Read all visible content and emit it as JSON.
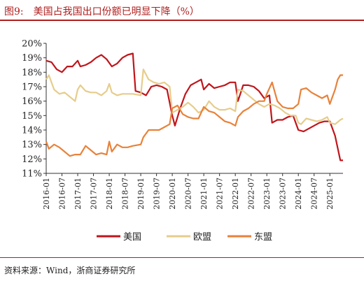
{
  "header": {
    "figure_label": "图9:",
    "title": "美国占我国出口份额已明显下降（%）"
  },
  "footer": {
    "source": "资料来源：Wind，浙商证券研究所"
  },
  "chart_data": {
    "type": "line",
    "title": "美国占我国出口份额已明显下降（%）",
    "xlabel": "",
    "ylabel": "",
    "ylim": [
      11,
      20
    ],
    "ytick_labels": [
      "11%",
      "12%",
      "13%",
      "14%",
      "15%",
      "16%",
      "17%",
      "18%",
      "19%",
      "20%"
    ],
    "xtick_labels": [
      "2016-01",
      "2016-07",
      "2017-01",
      "2017-07",
      "2018-01",
      "2018-07",
      "2019-01",
      "2019-07",
      "2020-01",
      "2020-07",
      "2021-01",
      "2021-07",
      "2022-01",
      "2022-07",
      "2023-01",
      "2023-07",
      "2024-01",
      "2024-07",
      "2025-01"
    ],
    "grid": false,
    "legend_position": "bottom",
    "series": [
      {
        "name": "美国",
        "color": "#c0151b",
        "points": [
          [
            "2016-01",
            18.8
          ],
          [
            "2016-03",
            18.7
          ],
          [
            "2016-05",
            18.2
          ],
          [
            "2016-07",
            18.0
          ],
          [
            "2016-09",
            18.4
          ],
          [
            "2016-11",
            18.4
          ],
          [
            "2017-01",
            18.8
          ],
          [
            "2017-02",
            18.4
          ],
          [
            "2017-04",
            18.5
          ],
          [
            "2017-06",
            18.7
          ],
          [
            "2017-08",
            19.0
          ],
          [
            "2017-10",
            19.2
          ],
          [
            "2017-12",
            18.9
          ],
          [
            "2018-02",
            18.4
          ],
          [
            "2018-04",
            18.6
          ],
          [
            "2018-06",
            19.0
          ],
          [
            "2018-08",
            19.2
          ],
          [
            "2018-10",
            19.3
          ],
          [
            "2018-11",
            16.7
          ],
          [
            "2019-01",
            16.6
          ],
          [
            "2019-03",
            16.4
          ],
          [
            "2019-05",
            17.0
          ],
          [
            "2019-07",
            17.1
          ],
          [
            "2019-09",
            17.0
          ],
          [
            "2019-11",
            16.8
          ],
          [
            "2020-01",
            15.0
          ],
          [
            "2020-02",
            14.3
          ],
          [
            "2020-04",
            15.5
          ],
          [
            "2020-06",
            16.5
          ],
          [
            "2020-08",
            17.1
          ],
          [
            "2020-10",
            17.3
          ],
          [
            "2020-12",
            17.5
          ],
          [
            "2021-01",
            16.8
          ],
          [
            "2021-03",
            17.2
          ],
          [
            "2021-05",
            16.9
          ],
          [
            "2021-07",
            17.0
          ],
          [
            "2021-09",
            17.1
          ],
          [
            "2021-11",
            17.3
          ],
          [
            "2022-01",
            17.3
          ],
          [
            "2022-02",
            16.0
          ],
          [
            "2022-04",
            17.1
          ],
          [
            "2022-06",
            17.1
          ],
          [
            "2022-08",
            17.0
          ],
          [
            "2022-10",
            16.7
          ],
          [
            "2022-12",
            16.2
          ],
          [
            "2023-02",
            16.4
          ],
          [
            "2023-03",
            14.5
          ],
          [
            "2023-05",
            14.7
          ],
          [
            "2023-07",
            14.7
          ],
          [
            "2023-09",
            14.9
          ],
          [
            "2023-11",
            15.0
          ],
          [
            "2024-01",
            14.0
          ],
          [
            "2024-03",
            13.9
          ],
          [
            "2024-05",
            14.1
          ],
          [
            "2024-07",
            14.3
          ],
          [
            "2024-09",
            14.5
          ],
          [
            "2024-11",
            14.6
          ],
          [
            "2025-01",
            14.6
          ],
          [
            "2025-03",
            13.6
          ],
          [
            "2025-05",
            11.9
          ],
          [
            "2025-06",
            11.9
          ]
        ]
      },
      {
        "name": "欧盟",
        "color": "#e6cd8c",
        "points": [
          [
            "2016-01",
            17.5
          ],
          [
            "2016-02",
            17.8
          ],
          [
            "2016-04",
            16.8
          ],
          [
            "2016-06",
            16.5
          ],
          [
            "2016-08",
            16.6
          ],
          [
            "2016-10",
            16.3
          ],
          [
            "2016-12",
            16.0
          ],
          [
            "2017-01",
            16.8
          ],
          [
            "2017-02",
            17.1
          ],
          [
            "2017-04",
            16.7
          ],
          [
            "2017-06",
            16.6
          ],
          [
            "2017-08",
            16.6
          ],
          [
            "2017-10",
            16.4
          ],
          [
            "2017-12",
            16.7
          ],
          [
            "2018-01",
            17.2
          ],
          [
            "2018-02",
            16.6
          ],
          [
            "2018-04",
            16.4
          ],
          [
            "2018-06",
            16.5
          ],
          [
            "2018-08",
            16.5
          ],
          [
            "2018-10",
            16.5
          ],
          [
            "2019-01",
            16.4
          ],
          [
            "2019-02",
            18.2
          ],
          [
            "2019-04",
            17.5
          ],
          [
            "2019-06",
            17.3
          ],
          [
            "2019-08",
            17.2
          ],
          [
            "2019-10",
            17.3
          ],
          [
            "2019-12",
            17.0
          ],
          [
            "2020-01",
            15.2
          ],
          [
            "2020-03",
            15.4
          ],
          [
            "2020-05",
            15.6
          ],
          [
            "2020-07",
            15.9
          ],
          [
            "2020-09",
            15.6
          ],
          [
            "2020-11",
            15.2
          ],
          [
            "2021-01",
            15.4
          ],
          [
            "2021-03",
            16.0
          ],
          [
            "2021-05",
            15.6
          ],
          [
            "2021-07",
            15.4
          ],
          [
            "2021-09",
            15.4
          ],
          [
            "2021-11",
            15.5
          ],
          [
            "2022-01",
            15.3
          ],
          [
            "2022-02",
            16.8
          ],
          [
            "2022-04",
            16.7
          ],
          [
            "2022-06",
            16.4
          ],
          [
            "2022-08",
            16.1
          ],
          [
            "2022-10",
            15.8
          ],
          [
            "2022-12",
            15.6
          ],
          [
            "2023-02",
            15.8
          ],
          [
            "2023-04",
            15.7
          ],
          [
            "2023-06",
            15.5
          ],
          [
            "2023-08",
            15.2
          ],
          [
            "2023-10",
            15.0
          ],
          [
            "2023-12",
            15.0
          ],
          [
            "2024-01",
            14.5
          ],
          [
            "2024-02",
            14.4
          ],
          [
            "2024-04",
            14.8
          ],
          [
            "2024-06",
            14.7
          ],
          [
            "2024-08",
            14.6
          ],
          [
            "2024-10",
            14.7
          ],
          [
            "2024-12",
            14.9
          ],
          [
            "2025-01",
            14.5
          ],
          [
            "2025-03",
            14.4
          ],
          [
            "2025-05",
            14.7
          ],
          [
            "2025-06",
            14.8
          ]
        ]
      },
      {
        "name": "东盟",
        "color": "#e8823a",
        "points": [
          [
            "2016-01",
            13.2
          ],
          [
            "2016-02",
            12.7
          ],
          [
            "2016-04",
            13.0
          ],
          [
            "2016-06",
            12.8
          ],
          [
            "2016-08",
            12.5
          ],
          [
            "2016-10",
            12.2
          ],
          [
            "2016-12",
            12.3
          ],
          [
            "2017-02",
            12.3
          ],
          [
            "2017-04",
            12.9
          ],
          [
            "2017-06",
            12.6
          ],
          [
            "2017-08",
            12.3
          ],
          [
            "2017-10",
            12.4
          ],
          [
            "2017-12",
            12.3
          ],
          [
            "2018-01",
            13.2
          ],
          [
            "2018-02",
            12.5
          ],
          [
            "2018-04",
            13.0
          ],
          [
            "2018-06",
            12.8
          ],
          [
            "2018-08",
            12.8
          ],
          [
            "2018-10",
            12.9
          ],
          [
            "2019-01",
            13.0
          ],
          [
            "2019-02",
            13.5
          ],
          [
            "2019-04",
            14.0
          ],
          [
            "2019-06",
            14.0
          ],
          [
            "2019-08",
            14.0
          ],
          [
            "2019-10",
            14.2
          ],
          [
            "2019-12",
            14.4
          ],
          [
            "2020-01",
            15.5
          ],
          [
            "2020-03",
            15.7
          ],
          [
            "2020-05",
            15.1
          ],
          [
            "2020-07",
            14.9
          ],
          [
            "2020-09",
            14.8
          ],
          [
            "2020-11",
            14.8
          ],
          [
            "2021-01",
            15.6
          ],
          [
            "2021-03",
            15.3
          ],
          [
            "2021-05",
            15.2
          ],
          [
            "2021-07",
            14.9
          ],
          [
            "2021-09",
            14.6
          ],
          [
            "2021-11",
            14.5
          ],
          [
            "2022-01",
            14.3
          ],
          [
            "2022-02",
            14.9
          ],
          [
            "2022-04",
            15.3
          ],
          [
            "2022-06",
            15.5
          ],
          [
            "2022-08",
            15.8
          ],
          [
            "2022-10",
            16.0
          ],
          [
            "2022-12",
            16.0
          ],
          [
            "2023-01",
            16.5
          ],
          [
            "2023-03",
            17.3
          ],
          [
            "2023-05",
            16.0
          ],
          [
            "2023-07",
            15.6
          ],
          [
            "2023-09",
            15.5
          ],
          [
            "2023-11",
            15.5
          ],
          [
            "2024-01",
            15.8
          ],
          [
            "2024-02",
            16.8
          ],
          [
            "2024-04",
            16.9
          ],
          [
            "2024-06",
            16.6
          ],
          [
            "2024-08",
            16.4
          ],
          [
            "2024-10",
            16.2
          ],
          [
            "2024-12",
            16.4
          ],
          [
            "2025-01",
            15.8
          ],
          [
            "2025-03",
            16.8
          ],
          [
            "2025-04",
            17.5
          ],
          [
            "2025-05",
            17.8
          ],
          [
            "2025-06",
            17.8
          ]
        ]
      }
    ]
  }
}
